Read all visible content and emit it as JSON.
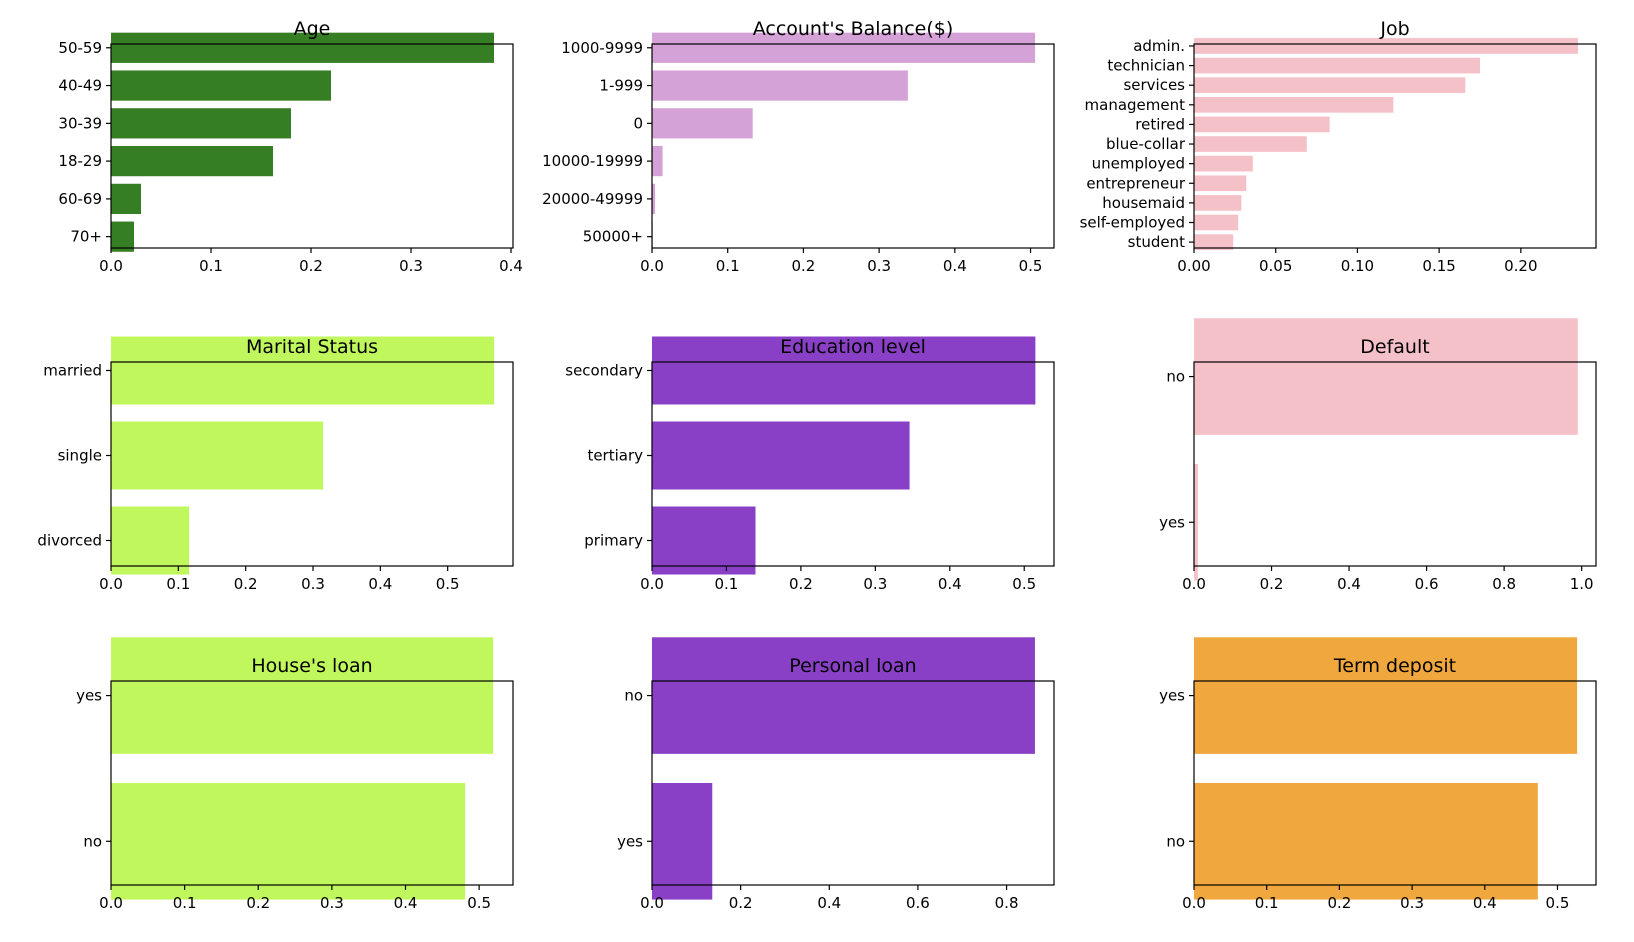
{
  "chart_data": [
    {
      "type": "bar",
      "orientation": "horizontal",
      "title": "Age",
      "categories": [
        "70+",
        "60-69",
        "18-29",
        "30-39",
        "40-49",
        "50-59"
      ],
      "values": [
        0.023,
        0.03,
        0.162,
        0.18,
        0.22,
        0.383
      ],
      "xlim": [
        0,
        0.402
      ],
      "xticks": [
        0.0,
        0.1,
        0.2,
        0.3,
        0.4
      ],
      "xtick_labels": [
        "0.0",
        "0.1",
        "0.2",
        "0.3",
        "0.4"
      ],
      "color": "#367e23"
    },
    {
      "type": "bar",
      "orientation": "horizontal",
      "title": "Account's Balance($)",
      "categories": [
        "50000+",
        "20000-49999",
        "10000-19999",
        "0",
        "1-999",
        "1000-9999"
      ],
      "values": [
        0.001,
        0.004,
        0.014,
        0.133,
        0.338,
        0.506
      ],
      "xlim": [
        0,
        0.531
      ],
      "xticks": [
        0.0,
        0.1,
        0.2,
        0.3,
        0.4,
        0.5
      ],
      "xtick_labels": [
        "0.0",
        "0.1",
        "0.2",
        "0.3",
        "0.4",
        "0.5"
      ],
      "color": "#d4a2d7"
    },
    {
      "type": "bar",
      "orientation": "horizontal",
      "title": "Job",
      "categories": [
        "student",
        "self-employed",
        "housemaid",
        "entrepreneur",
        "unemployed",
        "blue-collar",
        "retired",
        "management",
        "services",
        "technician",
        "admin."
      ],
      "values": [
        0.024,
        0.027,
        0.029,
        0.032,
        0.036,
        0.069,
        0.083,
        0.122,
        0.166,
        0.175,
        0.235
      ],
      "xlim": [
        0,
        0.246
      ],
      "xticks": [
        0.0,
        0.05,
        0.1,
        0.15,
        0.2
      ],
      "xtick_labels": [
        "0.00",
        "0.05",
        "0.10",
        "0.15",
        "0.20"
      ],
      "color": "#f5c1c8"
    },
    {
      "type": "bar",
      "orientation": "horizontal",
      "title": "Marital Status",
      "categories": [
        "divorced",
        "single",
        "married"
      ],
      "values": [
        0.116,
        0.315,
        0.569
      ],
      "xlim": [
        0,
        0.597
      ],
      "xticks": [
        0.0,
        0.1,
        0.2,
        0.3,
        0.4,
        0.5
      ],
      "xtick_labels": [
        "0.0",
        "0.1",
        "0.2",
        "0.3",
        "0.4",
        "0.5"
      ],
      "color": "#c0f75c"
    },
    {
      "type": "bar",
      "orientation": "horizontal",
      "title": "Education level",
      "categories": [
        "primary",
        "tertiary",
        "secondary"
      ],
      "values": [
        0.139,
        0.346,
        0.515
      ],
      "xlim": [
        0,
        0.54
      ],
      "xticks": [
        0.0,
        0.1,
        0.2,
        0.3,
        0.4,
        0.5
      ],
      "xtick_labels": [
        "0.0",
        "0.1",
        "0.2",
        "0.3",
        "0.4",
        "0.5"
      ],
      "color": "#8a40c6"
    },
    {
      "type": "bar",
      "orientation": "horizontal",
      "title": "Default",
      "categories": [
        "yes",
        "no"
      ],
      "values": [
        0.01,
        0.99
      ],
      "xlim": [
        0,
        1.037
      ],
      "xticks": [
        0.0,
        0.2,
        0.4,
        0.6,
        0.8,
        1.0
      ],
      "xtick_labels": [
        "0.0",
        "0.2",
        "0.4",
        "0.6",
        "0.8",
        "1.0"
      ],
      "color": "#f5c1c8"
    },
    {
      "type": "bar",
      "orientation": "horizontal",
      "title": "House's loan",
      "categories": [
        "no",
        "yes"
      ],
      "values": [
        0.481,
        0.519
      ],
      "xlim": [
        0,
        0.546
      ],
      "xticks": [
        0.0,
        0.1,
        0.2,
        0.3,
        0.4,
        0.5
      ],
      "xtick_labels": [
        "0.0",
        "0.1",
        "0.2",
        "0.3",
        "0.4",
        "0.5"
      ],
      "color": "#c0f75c"
    },
    {
      "type": "bar",
      "orientation": "horizontal",
      "title": "Personal loan",
      "categories": [
        "yes",
        "no"
      ],
      "values": [
        0.136,
        0.864
      ],
      "xlim": [
        0,
        0.907
      ],
      "xticks": [
        0.0,
        0.2,
        0.4,
        0.6,
        0.8
      ],
      "xtick_labels": [
        "0.0",
        "0.2",
        "0.4",
        "0.6",
        "0.8"
      ],
      "color": "#8a40c6"
    },
    {
      "type": "bar",
      "orientation": "horizontal",
      "title": "Term deposit",
      "categories": [
        "no",
        "yes"
      ],
      "values": [
        0.473,
        0.527
      ],
      "xlim": [
        0,
        0.553
      ],
      "xticks": [
        0.0,
        0.1,
        0.2,
        0.3,
        0.4,
        0.5
      ],
      "xtick_labels": [
        "0.0",
        "0.1",
        "0.2",
        "0.3",
        "0.4",
        "0.5"
      ],
      "color": "#f0a83e"
    }
  ]
}
